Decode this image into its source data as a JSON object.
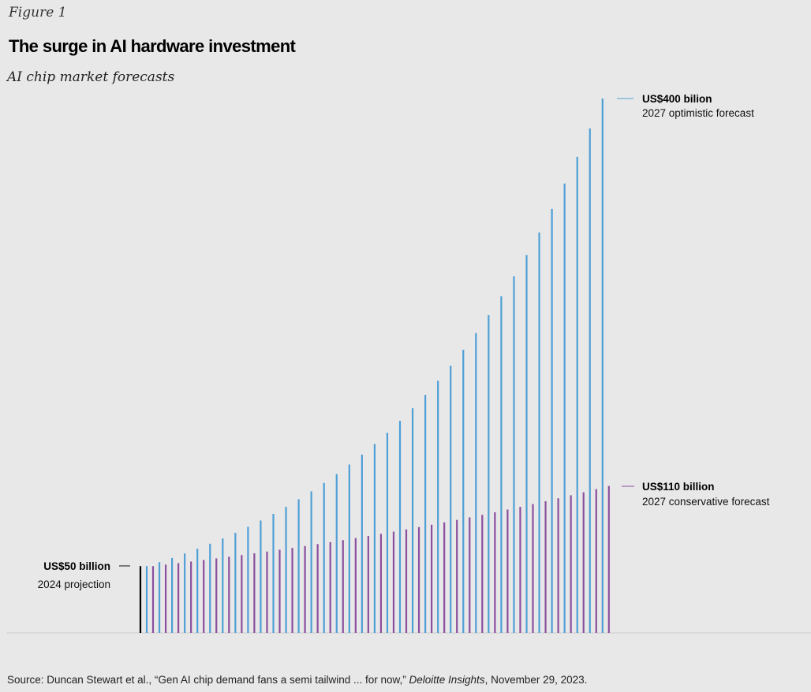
{
  "figure_label": "Figure 1",
  "title": "The surge in AI hardware investment",
  "subtitle": "AI chip market forecasts",
  "source": {
    "prefix": "Source: Duncan Stewart et al., “Gen AI chip demand fans a semi tailwind ... for now,” ",
    "publication": "Deloitte Insights",
    "suffix": ", November 29, 2023."
  },
  "colors": {
    "optimistic": "#4f9fd6",
    "conservative": "#8a4f9e",
    "start_bar": "#000000",
    "baseline": "#cccccc"
  },
  "chart_data": {
    "type": "bar",
    "units": "US$ billion",
    "start_value": 50,
    "bar_count": 37,
    "series": [
      {
        "key": "optimistic",
        "start": 50,
        "end": 400,
        "growth": "compound"
      },
      {
        "key": "conservative",
        "start": 50,
        "end": 110,
        "growth": "compound"
      }
    ],
    "ylim": [
      0,
      400
    ],
    "grid": false,
    "legend": "none"
  },
  "annotations": {
    "start": {
      "value": "US$50 billion",
      "label": "2024 projection"
    },
    "optimistic": {
      "value": "US$400 bilion",
      "label": "2027 optimistic forecast"
    },
    "conservative": {
      "value": "US$110 billion",
      "label": "2027 conservative forecast"
    }
  }
}
